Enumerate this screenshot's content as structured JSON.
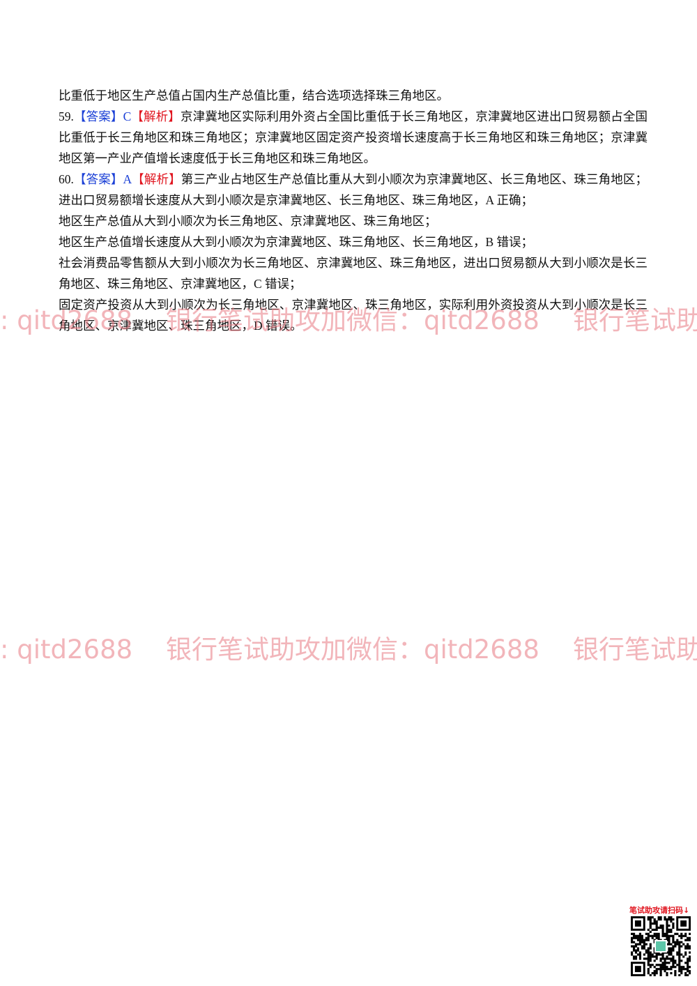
{
  "continuation": "比重低于地区生产总值占国内生产总值比重，结合选项选择珠三角地区。",
  "q59": {
    "number": "59.",
    "answer_tag": "【答案】",
    "answer": "C",
    "analysis_tag": "【解析】",
    "lines": [
      "京津冀地区实际利用外资占全国比重低于长三角地区，京津冀地区进出口贸易额占全国",
      "比重低于长三角地区和珠三角地区；京津冀地区固定资产投资增长速度高于长三角地区和珠三角地区；京津冀",
      "地区第一产业产值增长速度低于长三角地区和珠三角地区。"
    ]
  },
  "q60": {
    "number": "60.",
    "answer_tag": "【答案】",
    "answer": "A",
    "analysis_tag": "【解析】",
    "lines": [
      "第三产业占地区生产总值比重从大到小顺次为京津冀地区、长三角地区、珠三角地区；",
      "进出口贸易额增长速度从大到小顺次是京津冀地区、长三角地区、珠三角地区，A 正确；",
      "地区生产总值从大到小顺次为长三角地区、京津冀地区、珠三角地区；",
      "地区生产总值增长速度从大到小顺次为京津冀地区、珠三角地区、长三角地区，B 错误；",
      "社会消费品零售额从大到小顺次为长三角地区、京津冀地区、珠三角地区，进出口贸易额从大到小顺次是长三",
      "角地区、珠三角地区、京津冀地区，C 错误；",
      "固定资产投资从大到小顺次为长三角地区、京津冀地区、珠三角地区，实际利用外资投资从大到小顺次是长三",
      "角地区、京津冀地区、珠三角地区，D 错误。"
    ]
  },
  "watermark": [
    ": qitd2688",
    "银行笔试助攻加微信：qitd2688",
    "银行笔试助"
  ],
  "qr_caption": "笔试助攻请扫码↓"
}
